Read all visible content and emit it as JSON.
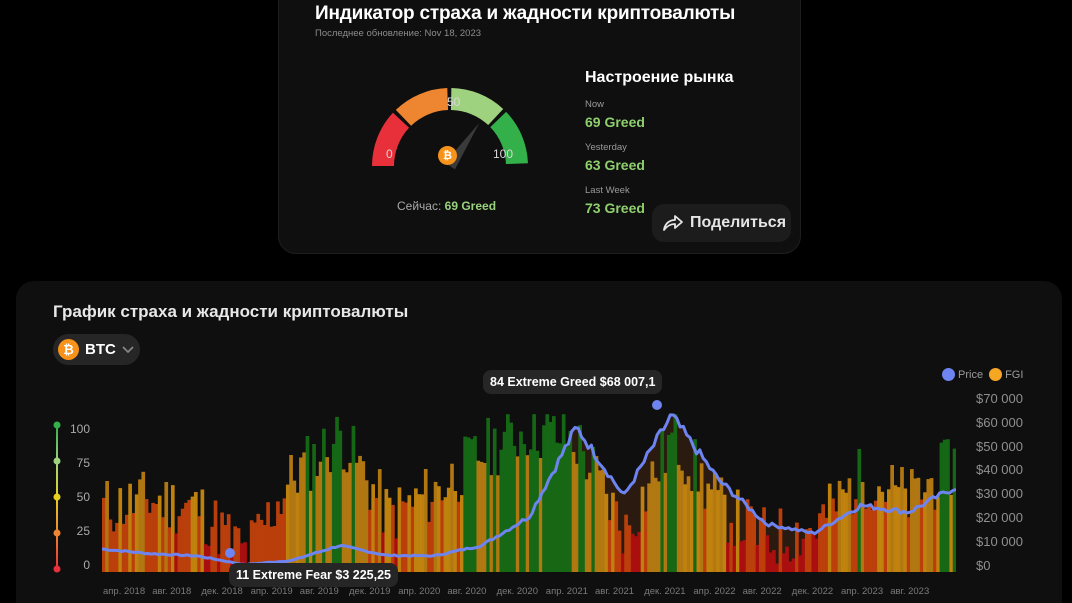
{
  "indicator": {
    "title": "Индикатор страха и жадности криптовалюты",
    "updated": "Последнее обновление: Nov 18, 2023",
    "gauge": {
      "min_label": "0",
      "mid_label": "50",
      "max_label": "100",
      "value": 69,
      "now_prefix": "Сейчас:",
      "now_value": "69 Greed",
      "segment_colors": [
        "#e8303a",
        "#ee8530",
        "#9fd27f",
        "#33b04a"
      ]
    },
    "mood": {
      "title": "Настроение рынка",
      "items": [
        {
          "label": "Now",
          "value": "69 Greed"
        },
        {
          "label": "Yesterday",
          "value": "63 Greed"
        },
        {
          "label": "Last Week",
          "value": "73 Greed"
        }
      ]
    },
    "share_label": "Поделиться"
  },
  "chart_section": {
    "title": "График страха и жадности криптовалюты",
    "coin": {
      "symbol": "BTC",
      "icon": "bitcoin-icon"
    },
    "legend": [
      {
        "label": "Price",
        "color": "#6e84f0"
      },
      {
        "label": "FGI",
        "color": "#f5a623"
      }
    ],
    "tooltip_max": "84 Extreme Greed $68 007,1",
    "tooltip_min": "11 Extreme Fear $3 225,25"
  },
  "chart_data": {
    "type": "area",
    "title": "График страха и жадности криптовалюты",
    "xlabel": "",
    "ylabel_left": "FGI",
    "ylabel_right": "Price",
    "x_ticks": [
      "апр. 2018",
      "авг. 2018",
      "дек. 2018",
      "апр. 2019",
      "авг. 2019",
      "дек. 2019",
      "апр. 2020",
      "авг. 2020",
      "дек. 2020",
      "апр. 2021",
      "авг. 2021",
      "дек. 2021",
      "апр. 2022",
      "авг. 2022",
      "дек. 2022",
      "апр. 2023",
      "авг. 2023"
    ],
    "y_left_ticks": [
      "0",
      "25",
      "50",
      "75",
      "100"
    ],
    "y_left_tick_colors": [
      "#e8303a",
      "#ee8530",
      "#e6d11f",
      "#9fd27f",
      "#33b04a"
    ],
    "y_right_ticks": [
      "$0",
      "$10 000",
      "$20 000",
      "$30 000",
      "$40 000",
      "$50 000",
      "$60 000",
      "$70 000"
    ],
    "ylim_left": [
      0,
      100
    ],
    "ylim_right": [
      0,
      70000
    ],
    "legend_position": "top-right",
    "series": [
      {
        "name": "Price",
        "x": [
          "фев. 2018",
          "апр. 2018",
          "авг. 2018",
          "дек. 2018",
          "апр. 2019",
          "июл. 2019",
          "дек. 2019",
          "апр. 2020",
          "авг. 2020",
          "дек. 2020",
          "апр. 2021",
          "июл. 2021",
          "ноя. 2021",
          "апр. 2022",
          "июл. 2022",
          "дек. 2022",
          "апр. 2023",
          "авг. 2023",
          "ноя. 2023"
        ],
        "values": [
          10000,
          8000,
          7000,
          3225,
          5000,
          11500,
          7200,
          7000,
          11500,
          24000,
          63000,
          33000,
          68007,
          40000,
          21000,
          16800,
          29000,
          26000,
          37000
        ]
      },
      {
        "name": "FGI",
        "x": [
          "фев. 2018",
          "апр. 2018",
          "авг. 2018",
          "дек. 2018",
          "апр. 2019",
          "июл. 2019",
          "дек. 2019",
          "апр. 2020",
          "авг. 2020",
          "дек. 2020",
          "апр. 2021",
          "июл. 2021",
          "ноя. 2021",
          "апр. 2022",
          "июл. 2022",
          "дек. 2022",
          "апр. 2023",
          "авг. 2023",
          "ноя. 2023"
        ],
        "values": [
          40,
          45,
          40,
          11,
          60,
          85,
          35,
          50,
          75,
          90,
          80,
          25,
          84,
          40,
          20,
          28,
          60,
          45,
          69
        ]
      }
    ],
    "annotations": [
      {
        "label": "84 Extreme Greed $68 007,1"
      },
      {
        "label": "11 Extreme Fear $3 225,25"
      }
    ]
  }
}
